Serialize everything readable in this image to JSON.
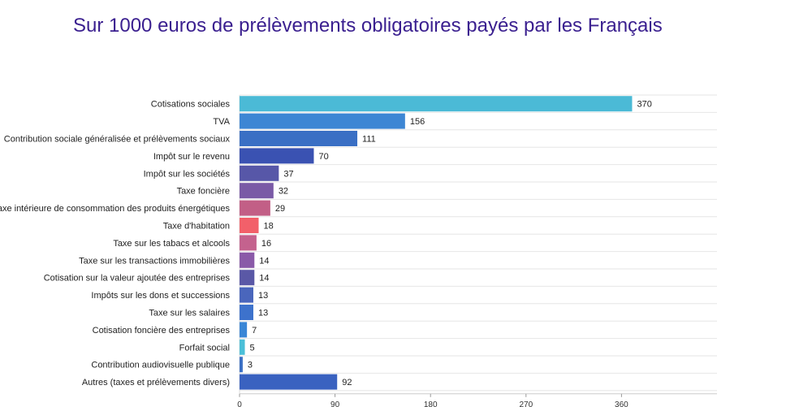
{
  "title": "Sur 1000 euros de prélèvements obligatoires payés par les Français",
  "chart_data": {
    "type": "bar",
    "orientation": "horizontal",
    "title": "Sur 1000 euros de prélèvements obligatoires payés par les Français",
    "xlabel": "",
    "ylabel": "",
    "xlim": [
      0,
      450
    ],
    "x_ticks": [
      0,
      90,
      180,
      270,
      360
    ],
    "grid": true,
    "categories": [
      "Cotisations sociales",
      "TVA",
      "Contribution sociale généralisée et prélèvements sociaux",
      "Impôt sur le revenu",
      "Impôt sur les sociétés",
      "Taxe foncière",
      "Taxe intérieure de consommation des produits énergétiques",
      "Taxe d'habitation",
      "Taxe sur les tabacs et alcools",
      "Taxe sur les transactions immobilières",
      "Cotisation sur la valeur ajoutée des entreprises",
      "Impôts sur les dons et successions",
      "Taxe sur les salaires",
      "Cotisation foncière des entreprises",
      "Forfait social",
      "Contribution audiovisuelle publique",
      "Autres (taxes et prélèvements divers)"
    ],
    "values": [
      370,
      156,
      111,
      70,
      37,
      32,
      29,
      18,
      16,
      14,
      14,
      13,
      13,
      7,
      5,
      3,
      92
    ],
    "colors": [
      "#4bbad6",
      "#3d86d4",
      "#3a6fc4",
      "#3a52b2",
      "#5757a8",
      "#7a5aa6",
      "#c25f86",
      "#f2606a",
      "#c4628e",
      "#8a5aa8",
      "#5a58a6",
      "#4a66bc",
      "#3d72cc",
      "#3a86d6",
      "#4bbfd8",
      "#3a6fc4",
      "#3a62c0"
    ]
  }
}
